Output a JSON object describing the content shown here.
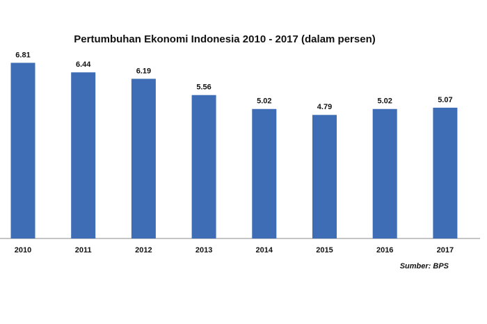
{
  "chart_data": {
    "type": "bar",
    "title": "Pertumbuhan Ekonomi  Indonesia  2010 -  2017 (dalam persen)",
    "categories": [
      "2010",
      "2011",
      "2012",
      "2013",
      "2014",
      "2015",
      "2016",
      "2017"
    ],
    "values": [
      6.81,
      6.44,
      6.19,
      5.56,
      5.02,
      4.79,
      5.02,
      5.07
    ],
    "color": "#3e6db5",
    "source": "Sumber: BPS"
  }
}
